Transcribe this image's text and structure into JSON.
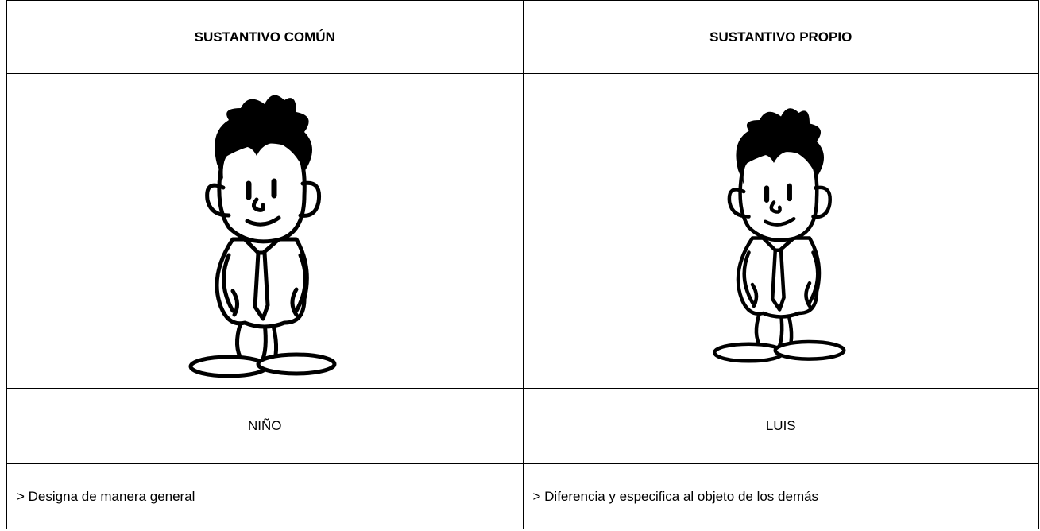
{
  "table": {
    "header": [
      "SUSTANTIVO COMÚN",
      "SUSTANTIVO PROPIO"
    ],
    "rows": [
      [
        "NIÑO",
        "LUIS"
      ],
      [
        "> Designa de manera general",
        "> Diferencia y especifica al objeto de los demás"
      ]
    ]
  }
}
